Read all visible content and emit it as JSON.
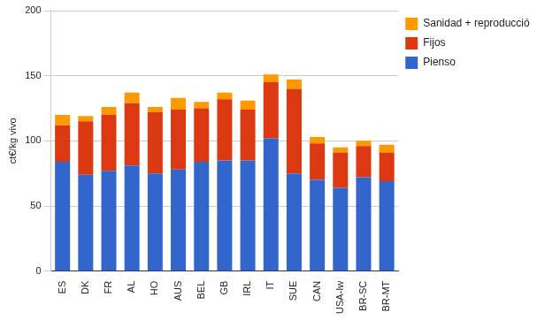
{
  "chart_data": {
    "type": "bar",
    "stacked": true,
    "grid": true,
    "legend": "right",
    "y_label": "ct€/kg vivo",
    "categories": [
      "ES",
      "DK",
      "FR",
      "AL",
      "HO",
      "AUS",
      "BEL",
      "GB",
      "IRL",
      "IT",
      "SUE",
      "CAN",
      "USA-Iw",
      "BR-SC",
      "BR-MT"
    ],
    "series": [
      {
        "name": "Pienso",
        "color": "#3366cc",
        "values": [
          84,
          74,
          77,
          81,
          75,
          78,
          84,
          85,
          85,
          102,
          75,
          70,
          64,
          72,
          69
        ]
      },
      {
        "name": "Fijos",
        "color": "#dc3912",
        "values": [
          28,
          41,
          43,
          48,
          47,
          46,
          41,
          47,
          39,
          43,
          65,
          28,
          27,
          24,
          22
        ]
      },
      {
        "name": "Sanidad + reproducción",
        "color": "#ff9900",
        "values": [
          8,
          4,
          6,
          8,
          4,
          9,
          5,
          5,
          7,
          6,
          7,
          5,
          4,
          4,
          6
        ]
      }
    ],
    "ylim": [
      0,
      200
    ],
    "yticks": [
      0,
      50,
      100,
      150,
      200
    ]
  }
}
